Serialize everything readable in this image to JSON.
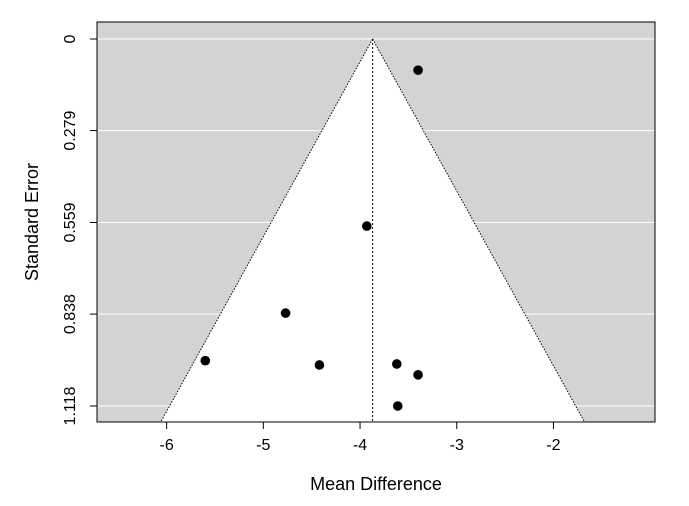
{
  "chart_data": {
    "type": "scatter",
    "subtype": "funnel-plot",
    "title": "",
    "xlabel": "Mean Difference",
    "ylabel": "Standard Error",
    "xlim": [
      -6.72,
      -0.95
    ],
    "ylim": [
      1.118,
      0
    ],
    "y_axis_reversed": true,
    "x_ticks": [
      -6,
      -5,
      -4,
      -3,
      -2
    ],
    "x_tick_labels": [
      "-6",
      "-5",
      "-4",
      "-3",
      "-2"
    ],
    "y_ticks": [
      0,
      0.279,
      0.559,
      0.838,
      1.118
    ],
    "y_tick_labels": [
      "0",
      "0.279",
      "0.559",
      "0.838",
      "1.118"
    ],
    "pooled_estimate": -3.87,
    "funnel_multiplier": 1.96,
    "grid": true,
    "colors": {
      "background_shade": "#d3d3d3",
      "funnel_interior": "#ffffff",
      "gridline": "#ffffff",
      "points": "#000000"
    },
    "points": [
      {
        "x": -3.4,
        "y": 0.095
      },
      {
        "x": -3.93,
        "y": 0.57
      },
      {
        "x": -4.77,
        "y": 0.835
      },
      {
        "x": -5.6,
        "y": 0.98
      },
      {
        "x": -4.42,
        "y": 0.993
      },
      {
        "x": -3.62,
        "y": 0.99
      },
      {
        "x": -3.4,
        "y": 1.023
      },
      {
        "x": -3.61,
        "y": 1.118
      }
    ]
  }
}
